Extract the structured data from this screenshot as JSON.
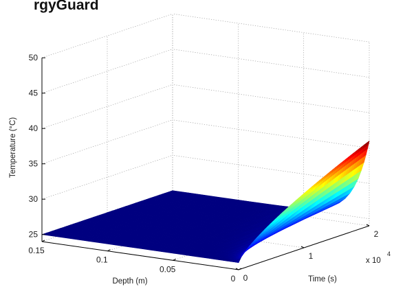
{
  "title_fragment": "rgyGuard",
  "chart_data": {
    "type": "surface",
    "xlabel": "Depth (m)",
    "ylabel": "Time (s)",
    "zlabel": "Temperature (°C)",
    "y_multiplier_label": "x 10",
    "y_multiplier_exp": "4",
    "xlim": [
      0,
      0.15
    ],
    "ylim": [
      0,
      2
    ],
    "zlim": [
      24,
      50
    ],
    "x_ticks": [
      "0.15",
      "0.1",
      "0.05",
      "0"
    ],
    "y_ticks": [
      "0",
      "1",
      "2"
    ],
    "z_ticks": [
      "25",
      "30",
      "35",
      "40",
      "45",
      "50"
    ],
    "ambient_temperature": 25,
    "surface_temperature_final": 36,
    "colormap": "jet"
  }
}
